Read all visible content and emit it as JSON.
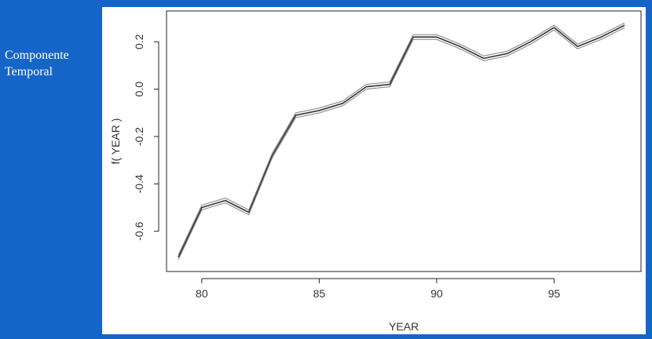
{
  "side_label": [
    "Componente",
    "Temporal"
  ],
  "chart_data": {
    "type": "line",
    "title": "",
    "xlabel": "YEAR",
    "ylabel": "f( YEAR )",
    "xlim": [
      78.5,
      98.7
    ],
    "ylim": [
      -0.77,
      0.33
    ],
    "xticks": [
      80,
      85,
      90,
      95
    ],
    "yticks": [
      -0.6,
      -0.4,
      -0.2,
      0.0,
      0.2
    ],
    "xtick_labels": [
      "80",
      "85",
      "90",
      "95"
    ],
    "ytick_labels": [
      "-0.6",
      "-0.4",
      "-0.2",
      "0.0",
      "0.2"
    ],
    "grid": false,
    "series": [
      {
        "role": "estimate",
        "x": [
          79,
          80,
          81,
          82,
          83,
          84,
          85,
          86,
          87,
          88,
          89,
          90,
          91,
          92,
          93,
          94,
          95,
          96,
          97,
          98
        ],
        "y": [
          -0.71,
          -0.5,
          -0.47,
          -0.52,
          -0.28,
          -0.11,
          -0.09,
          -0.06,
          0.01,
          0.02,
          0.22,
          0.22,
          0.18,
          0.13,
          0.15,
          0.2,
          0.26,
          0.18,
          0.22,
          0.27
        ]
      },
      {
        "role": "upper band",
        "x": [
          79,
          80,
          81,
          82,
          83,
          84,
          85,
          86,
          87,
          88,
          89,
          90,
          91,
          92,
          93,
          94,
          95,
          96,
          97,
          98
        ],
        "y": [
          -0.7,
          -0.49,
          -0.46,
          -0.51,
          -0.27,
          -0.1,
          -0.08,
          -0.05,
          0.02,
          0.03,
          0.23,
          0.23,
          0.19,
          0.14,
          0.16,
          0.21,
          0.27,
          0.19,
          0.23,
          0.28
        ]
      },
      {
        "role": "lower band",
        "x": [
          79,
          80,
          81,
          82,
          83,
          84,
          85,
          86,
          87,
          88,
          89,
          90,
          91,
          92,
          93,
          94,
          95,
          96,
          97,
          98
        ],
        "y": [
          -0.72,
          -0.51,
          -0.48,
          -0.53,
          -0.29,
          -0.12,
          -0.1,
          -0.07,
          0.0,
          0.01,
          0.21,
          0.21,
          0.17,
          0.12,
          0.14,
          0.19,
          0.25,
          0.17,
          0.21,
          0.26
        ]
      }
    ]
  },
  "colors": {
    "background": "#1565c8",
    "panel": "#ffffff",
    "estimate_line": "#333333",
    "band_line": "#8a8a8a",
    "axis": "#222222",
    "side_label": "#ffffff"
  }
}
